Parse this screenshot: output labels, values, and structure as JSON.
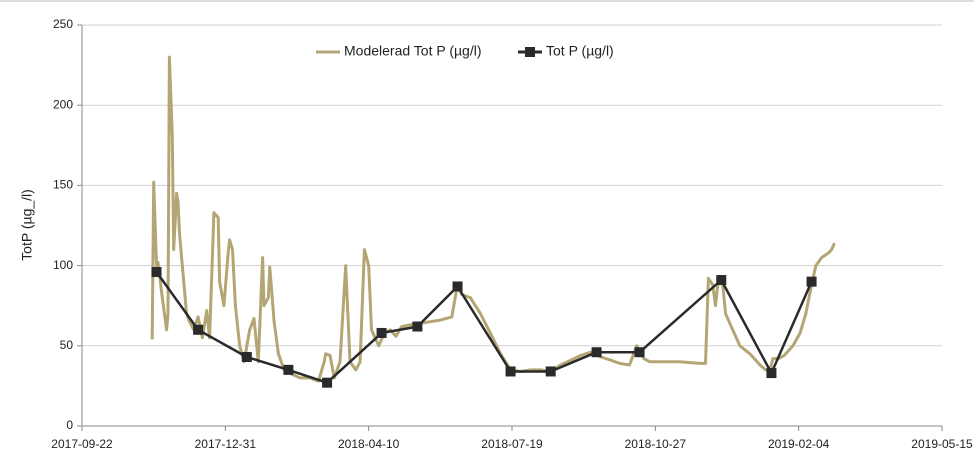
{
  "chart_data": {
    "type": "line",
    "y_label": "TotP (µg_/l)",
    "xlim": [
      "2017-09-22",
      "2019-05-15"
    ],
    "xticks": [
      "2017-09-22",
      "2017-12-31",
      "2018-04-10",
      "2018-07-19",
      "2018-10-27",
      "2019-02-04",
      "2019-05-15"
    ],
    "ylim": [
      0,
      250
    ],
    "yticks": [
      0,
      50,
      100,
      150,
      200,
      250
    ],
    "grid": true,
    "series": [
      {
        "name": "Modelerad Tot P (µg/l)",
        "color": "#b3a674",
        "marker": false,
        "x": [
          "2017-11-10",
          "2017-11-11",
          "2017-11-13",
          "2017-11-14",
          "2017-11-17",
          "2017-11-20",
          "2017-11-21",
          "2017-11-22",
          "2017-11-24",
          "2017-11-25",
          "2017-11-27",
          "2017-11-28",
          "2017-11-29",
          "2017-12-01",
          "2017-12-04",
          "2017-12-06",
          "2017-12-09",
          "2017-12-12",
          "2017-12-15",
          "2017-12-18",
          "2017-12-20",
          "2017-12-23",
          "2017-12-26",
          "2017-12-27",
          "2017-12-30",
          "2018-01-02",
          "2018-01-03",
          "2018-01-05",
          "2018-01-07",
          "2018-01-10",
          "2018-01-13",
          "2018-01-17",
          "2018-01-20",
          "2018-01-23",
          "2018-01-26",
          "2018-01-27",
          "2018-01-30",
          "2018-01-31",
          "2018-02-03",
          "2018-02-06",
          "2018-02-10",
          "2018-02-14",
          "2018-02-21",
          "2018-02-28",
          "2018-03-06",
          "2018-03-10",
          "2018-03-11",
          "2018-03-14",
          "2018-03-17",
          "2018-03-21",
          "2018-03-25",
          "2018-03-28",
          "2018-04-01",
          "2018-04-04",
          "2018-04-07",
          "2018-04-10",
          "2018-04-12",
          "2018-04-17",
          "2018-04-21",
          "2018-04-25",
          "2018-04-29",
          "2018-05-03",
          "2018-05-09",
          "2018-05-16",
          "2018-05-23",
          "2018-05-30",
          "2018-06-07",
          "2018-06-11",
          "2018-06-14",
          "2018-06-20",
          "2018-06-27",
          "2018-07-05",
          "2018-07-11",
          "2018-07-18",
          "2018-07-25",
          "2018-08-01",
          "2018-08-08",
          "2018-08-15",
          "2018-08-22",
          "2018-08-29",
          "2018-09-05",
          "2018-09-12",
          "2018-09-19",
          "2018-09-26",
          "2018-10-02",
          "2018-10-09",
          "2018-10-14",
          "2018-10-19",
          "2018-10-23",
          "2018-10-30",
          "2018-11-13",
          "2018-11-27",
          "2018-12-01",
          "2018-12-03",
          "2018-12-06",
          "2018-12-08",
          "2018-12-10",
          "2018-12-13",
          "2018-12-15",
          "2018-12-20",
          "2018-12-25",
          "2019-01-01",
          "2019-01-08",
          "2019-01-12",
          "2019-01-15",
          "2019-01-17",
          "2019-01-21",
          "2019-01-25",
          "2019-01-31",
          "2019-02-05",
          "2019-02-09",
          "2019-02-13",
          "2019-02-16",
          "2019-02-20",
          "2019-02-25",
          "2019-02-27",
          "2019-03-01"
        ],
        "values": [
          54,
          152,
          100,
          102,
          80,
          60,
          70,
          230,
          180,
          110,
          145,
          140,
          120,
          100,
          70,
          65,
          60,
          68,
          55,
          72,
          55,
          133,
          130,
          90,
          75,
          108,
          116,
          110,
          75,
          50,
          40,
          60,
          67,
          40,
          105,
          75,
          80,
          99,
          65,
          45,
          35,
          33,
          30,
          30,
          28,
          40,
          45,
          44,
          30,
          40,
          100,
          40,
          35,
          40,
          110,
          100,
          60,
          50,
          58,
          60,
          56,
          62,
          63,
          64,
          65,
          66,
          68,
          88,
          82,
          80,
          70,
          56,
          45,
          35,
          34,
          35,
          35,
          34,
          38,
          41,
          44,
          46,
          43,
          41,
          39,
          38,
          50,
          42,
          40,
          40,
          40,
          39,
          39,
          92,
          88,
          75,
          92,
          88,
          70,
          60,
          50,
          45,
          38,
          35,
          35,
          42,
          42,
          44,
          50,
          58,
          70,
          88,
          100,
          105,
          108,
          110,
          114
        ]
      },
      {
        "name": "Tot P (µg/l)",
        "color": "#2a2a2a",
        "marker": true,
        "x": [
          "2017-11-13",
          "2017-12-12",
          "2018-01-15",
          "2018-02-13",
          "2018-03-12",
          "2018-04-19",
          "2018-05-14",
          "2018-06-11",
          "2018-07-18",
          "2018-08-15",
          "2018-09-16",
          "2018-10-16",
          "2018-12-12",
          "2019-01-16",
          "2019-02-13"
        ],
        "values": [
          96,
          60,
          43,
          35,
          27,
          58,
          62,
          87,
          34,
          34,
          46,
          46,
          91,
          33,
          90
        ]
      }
    ]
  }
}
